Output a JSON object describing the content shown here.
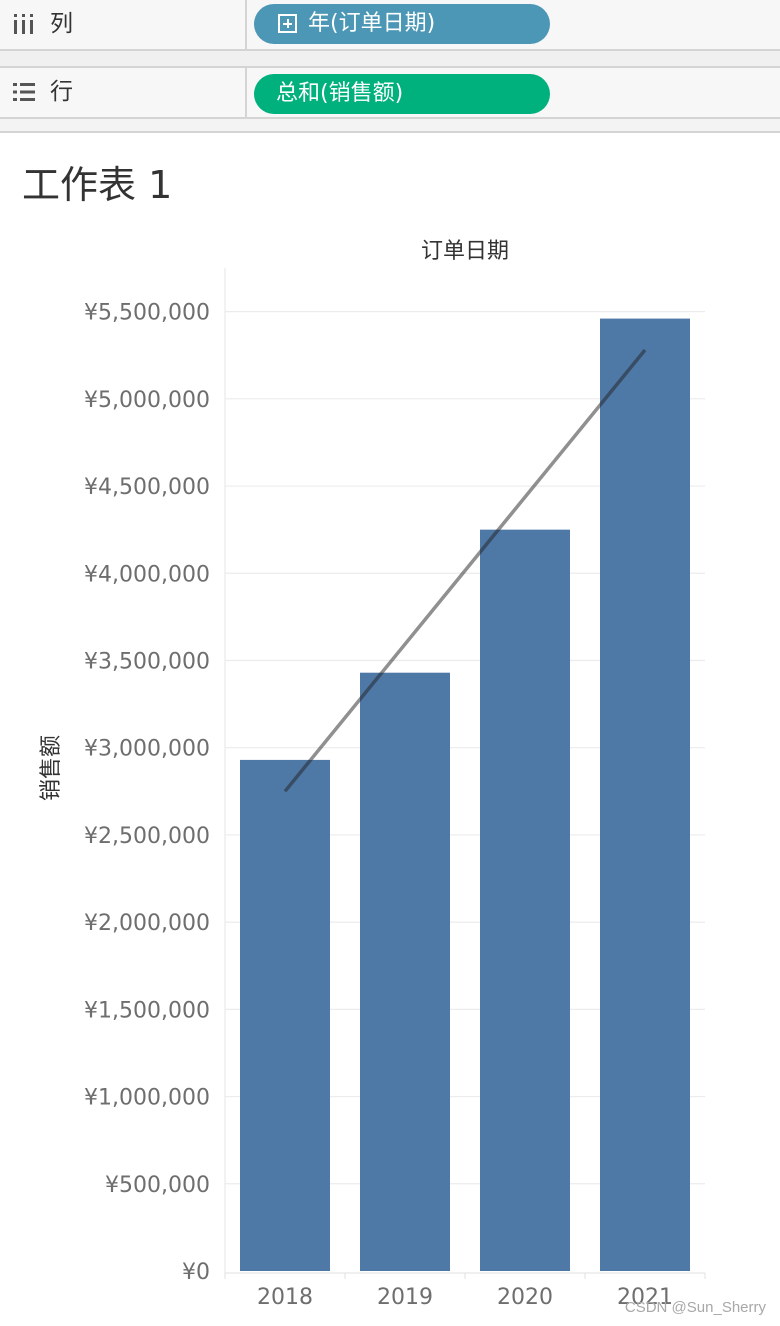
{
  "shelves": {
    "columns": {
      "label": "列",
      "icon": "columns-shelf-icon",
      "pill_text": "年(订单日期)",
      "pill_color": "#4b97b5"
    },
    "rows": {
      "label": "行",
      "icon": "rows-shelf-icon",
      "pill_text": "总和(销售额)",
      "pill_color": "#00b07d"
    }
  },
  "sheet": {
    "title": "工作表 1"
  },
  "chart_data": {
    "type": "bar",
    "title": "",
    "xlabel": "订单日期",
    "ylabel": "销售额",
    "categories": [
      "2018",
      "2019",
      "2020",
      "2021"
    ],
    "series": [
      {
        "values": [
          2930000,
          3430000,
          4250000,
          5460000
        ],
        "color": "#4e79a7"
      }
    ],
    "trend_line": {
      "type": "linear",
      "start": 2750000,
      "end": 5280000,
      "color": "#808080"
    },
    "ylim": [
      0,
      5750000
    ],
    "yticks": [
      0,
      500000,
      1000000,
      1500000,
      2000000,
      2500000,
      3000000,
      3500000,
      4000000,
      4500000,
      5000000,
      5500000
    ],
    "ytick_labels": [
      "¥0",
      "¥500,000",
      "¥1,000,000",
      "¥1,500,000",
      "¥2,000,000",
      "¥2,500,000",
      "¥3,000,000",
      "¥3,500,000",
      "¥4,000,000",
      "¥4,500,000",
      "¥5,000,000",
      "¥5,500,000"
    ],
    "grid": true,
    "legend": "none"
  },
  "watermark": "CSDN @Sun_Sherry"
}
